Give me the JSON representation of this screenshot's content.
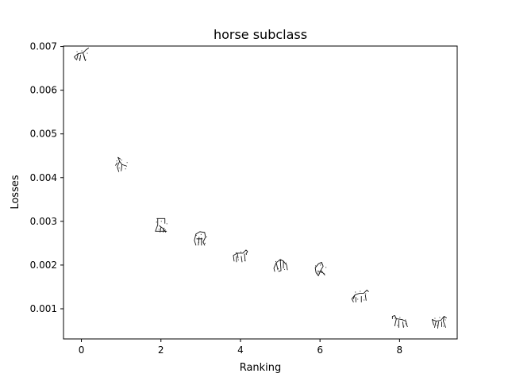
{
  "chart_data": {
    "type": "scatter",
    "title": "horse subclass",
    "xlabel": "Ranking",
    "ylabel": "Losses",
    "xlim": [
      -0.45,
      9.45
    ],
    "ylim": [
      0.00031,
      0.00701
    ],
    "xticks": [
      0,
      2,
      4,
      6,
      8
    ],
    "xtick_labels": [
      "0",
      "2",
      "4",
      "6",
      "8"
    ],
    "yticks": [
      0.001,
      0.002,
      0.003,
      0.004,
      0.005,
      0.006,
      0.007
    ],
    "ytick_labels": [
      "0.001",
      "0.002",
      "0.003",
      "0.004",
      "0.005",
      "0.006",
      "0.007"
    ],
    "grid": false,
    "marker": "image thumbnails (horse sketches)",
    "x": [
      0,
      1,
      2,
      3,
      4,
      5,
      6,
      7,
      8,
      9
    ],
    "y": [
      0.0068,
      0.0043,
      0.0029,
      0.0026,
      0.0022,
      0.002,
      0.0019,
      0.0013,
      0.0007,
      0.0007
    ],
    "marker_icons": [
      "horse-sketch-icon",
      "horse-sketch-icon",
      "horse-sketch-icon",
      "horse-sketch-icon",
      "horse-sketch-icon",
      "horse-sketch-icon",
      "horse-sketch-icon",
      "horse-sketch-icon",
      "horse-sketch-icon",
      "horse-sketch-icon"
    ]
  }
}
